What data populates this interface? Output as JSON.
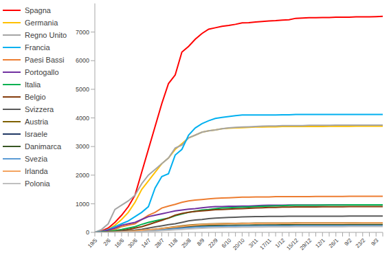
{
  "chart_data": {
    "type": "line",
    "legend": "left",
    "grid": false,
    "categories": [
      "19/5",
      null,
      "2/6",
      null,
      "16/6",
      null,
      "30/6",
      null,
      "14/7",
      null,
      "28/7",
      null,
      "11/8",
      null,
      "25/8",
      null,
      "8/9",
      null,
      "22/9",
      null,
      "6/10",
      null,
      "20/10",
      null,
      "3/11",
      null,
      "17/11",
      null,
      "1/12",
      null,
      "15/12",
      null,
      "29/12",
      null,
      "12/1",
      null,
      "26/1",
      null,
      "9/2",
      null,
      "23/2",
      null,
      "9/3",
      null
    ],
    "ylim": [
      0,
      8000
    ],
    "yticks": [
      0,
      1000,
      2000,
      3000,
      4000,
      5000,
      6000,
      7000
    ],
    "series": [
      {
        "name": "Spagna",
        "color": "#ff0000",
        "values": [
          0,
          50,
          150,
          350,
          600,
          900,
          1300,
          2100,
          2900,
          3700,
          4500,
          5200,
          5500,
          6300,
          6500,
          6750,
          6950,
          7100,
          7150,
          7200,
          7230,
          7270,
          7320,
          7330,
          7350,
          7370,
          7390,
          7400,
          7420,
          7430,
          7480,
          7490,
          7500,
          7500,
          7510,
          7510,
          7520,
          7520,
          7520,
          7530,
          7530,
          7530,
          7540,
          7550
        ]
      },
      {
        "name": "Germania",
        "color": "#ffc000",
        "values": [
          0,
          30,
          100,
          250,
          450,
          700,
          1050,
          1500,
          1800,
          2100,
          2400,
          2600,
          2900,
          3100,
          3300,
          3400,
          3500,
          3550,
          3580,
          3620,
          3640,
          3650,
          3660,
          3670,
          3680,
          3680,
          3690,
          3690,
          3700,
          3700,
          3700,
          3700,
          3700,
          3700,
          3700,
          3705,
          3705,
          3705,
          3705,
          3710,
          3710,
          3710,
          3710,
          3710
        ]
      },
      {
        "name": "Regno Unito",
        "color": "#a5a5a5",
        "values": [
          0,
          100,
          300,
          800,
          950,
          1100,
          1300,
          1700,
          2000,
          2200,
          2400,
          2600,
          2950,
          3050,
          3300,
          3400,
          3500,
          3550,
          3580,
          3620,
          3650,
          3670,
          3680,
          3690,
          3700,
          3710,
          3720,
          3720,
          3730,
          3730,
          3730,
          3730,
          3740,
          3740,
          3740,
          3740,
          3750,
          3750,
          3750,
          3750,
          3750,
          3750,
          3750,
          3750
        ]
      },
      {
        "name": "Francia",
        "color": "#00b0f0",
        "values": [
          0,
          30,
          100,
          200,
          300,
          400,
          550,
          700,
          900,
          1550,
          1950,
          2050,
          2700,
          2900,
          3400,
          3650,
          3800,
          3900,
          3980,
          4020,
          4050,
          4080,
          4100,
          4100,
          4100,
          4100,
          4100,
          4100,
          4110,
          4110,
          4120,
          4120,
          4120,
          4120,
          4120,
          4120,
          4120,
          4120,
          4120,
          4120,
          4120,
          4120,
          4120,
          4120
        ]
      },
      {
        "name": "Paesi Bassi",
        "color": "#ed7d31",
        "values": [
          0,
          10,
          50,
          100,
          200,
          250,
          300,
          450,
          600,
          700,
          850,
          920,
          980,
          1050,
          1100,
          1130,
          1150,
          1170,
          1190,
          1200,
          1210,
          1220,
          1230,
          1230,
          1240,
          1240,
          1240,
          1250,
          1250,
          1250,
          1250,
          1250,
          1250,
          1255,
          1255,
          1255,
          1255,
          1255,
          1260,
          1260,
          1260,
          1260,
          1260,
          1260
        ]
      },
      {
        "name": "Portogallo",
        "color": "#7030a0",
        "values": [
          0,
          20,
          80,
          150,
          250,
          300,
          350,
          450,
          550,
          600,
          650,
          700,
          750,
          780,
          810,
          830,
          860,
          880,
          900,
          900,
          910,
          910,
          920,
          920,
          930,
          940,
          950,
          950,
          950,
          955,
          955,
          955,
          955,
          955,
          955,
          960,
          960,
          960,
          960,
          960,
          960,
          960,
          960,
          960
        ]
      },
      {
        "name": "Italia",
        "color": "#00b050",
        "values": [
          0,
          10,
          30,
          60,
          100,
          150,
          200,
          280,
          350,
          400,
          450,
          500,
          580,
          640,
          700,
          740,
          780,
          800,
          830,
          850,
          860,
          870,
          880,
          890,
          900,
          910,
          920,
          925,
          930,
          940,
          950,
          950,
          950,
          950,
          955,
          955,
          955,
          955,
          960,
          960,
          960,
          960,
          960,
          960
        ]
      },
      {
        "name": "Belgio",
        "color": "#843c0c",
        "values": [
          0,
          0,
          10,
          30,
          60,
          100,
          150,
          200,
          270,
          350,
          420,
          500,
          600,
          660,
          700,
          730,
          750,
          770,
          790,
          800,
          810,
          820,
          830,
          840,
          850,
          860,
          870,
          870,
          880,
          880,
          890,
          890,
          890,
          890,
          895,
          895,
          895,
          895,
          900,
          900,
          900,
          900,
          900,
          900
        ]
      },
      {
        "name": "Svizzera",
        "color": "#595959",
        "values": [
          0,
          0,
          10,
          20,
          40,
          60,
          80,
          110,
          150,
          190,
          230,
          270,
          300,
          350,
          400,
          430,
          450,
          480,
          500,
          510,
          520,
          530,
          540,
          545,
          550,
          555,
          560,
          560,
          560,
          562,
          562,
          564,
          564,
          565,
          565,
          566,
          566,
          567,
          568,
          568,
          569,
          569,
          570,
          570
        ]
      },
      {
        "name": "Austria",
        "color": "#7f6000",
        "values": [
          0,
          0,
          5,
          10,
          20,
          30,
          50,
          70,
          90,
          110,
          140,
          170,
          200,
          230,
          250,
          270,
          285,
          295,
          300,
          305,
          310,
          315,
          320,
          320,
          325,
          325,
          326,
          326,
          327,
          327,
          328,
          328,
          328,
          328,
          329,
          329,
          329,
          329,
          330,
          330,
          330,
          330,
          330,
          330
        ]
      },
      {
        "name": "Israele",
        "color": "#203864",
        "values": [
          0,
          0,
          0,
          5,
          10,
          20,
          30,
          45,
          60,
          80,
          100,
          120,
          140,
          160,
          180,
          195,
          205,
          215,
          220,
          225,
          230,
          232,
          235,
          238,
          240,
          242,
          244,
          245,
          246,
          247,
          248,
          248,
          249,
          249,
          250,
          250,
          250,
          250,
          250,
          250,
          250,
          250,
          250,
          250
        ]
      },
      {
        "name": "Danimarca",
        "color": "#375623",
        "values": [
          0,
          0,
          5,
          10,
          20,
          30,
          45,
          60,
          80,
          100,
          125,
          150,
          175,
          200,
          215,
          225,
          232,
          238,
          242,
          245,
          248,
          250,
          252,
          254,
          256,
          258,
          260,
          260,
          262,
          262,
          264,
          264,
          265,
          265,
          266,
          266,
          267,
          267,
          268,
          268,
          268,
          269,
          270,
          270
        ]
      },
      {
        "name": "Svezia",
        "color": "#5b9bd5",
        "values": [
          0,
          0,
          0,
          5,
          10,
          15,
          25,
          35,
          50,
          65,
          85,
          105,
          125,
          145,
          165,
          180,
          190,
          200,
          205,
          210,
          214,
          217,
          220,
          222,
          224,
          226,
          228,
          229,
          230,
          231,
          232,
          232,
          233,
          233,
          234,
          234,
          235,
          235,
          235,
          236,
          236,
          236,
          237,
          237
        ]
      },
      {
        "name": "Irlanda",
        "color": "#f4a460",
        "values": [
          0,
          0,
          5,
          10,
          20,
          35,
          50,
          70,
          90,
          110,
          135,
          160,
          185,
          210,
          235,
          255,
          270,
          280,
          290,
          295,
          300,
          304,
          308,
          310,
          312,
          314,
          316,
          318,
          319,
          320,
          321,
          322,
          323,
          324,
          325,
          325,
          326,
          326,
          327,
          327,
          328,
          328,
          329,
          330
        ]
      },
      {
        "name": "Polonia",
        "color": "#bfbfbf",
        "values": [
          0,
          0,
          0,
          0,
          5,
          10,
          15,
          25,
          35,
          45,
          60,
          75,
          90,
          105,
          120,
          135,
          145,
          155,
          162,
          168,
          172,
          176,
          180,
          183,
          186,
          188,
          190,
          192,
          194,
          195,
          196,
          197,
          198,
          199,
          200,
          200,
          201,
          201,
          202,
          202,
          203,
          203,
          204,
          205
        ]
      }
    ]
  }
}
